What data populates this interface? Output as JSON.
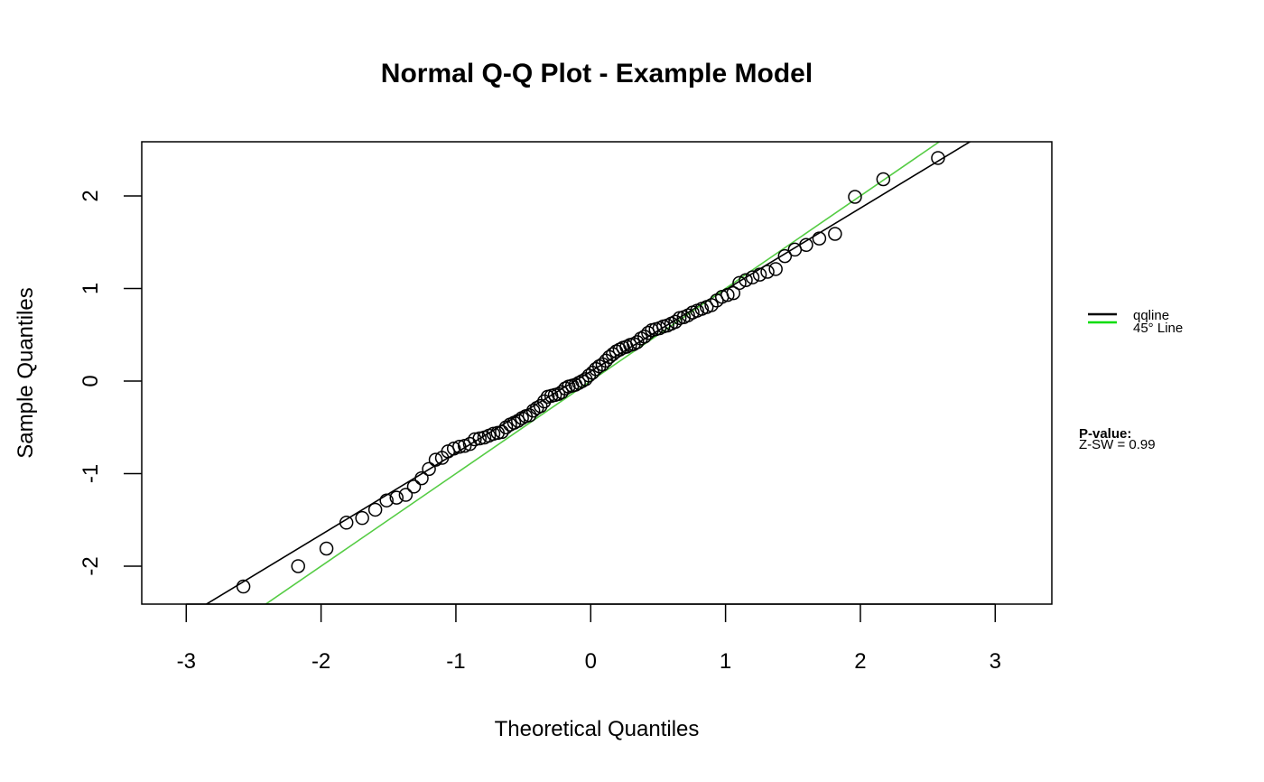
{
  "chart_data": {
    "type": "scatter",
    "title": "Normal Q-Q Plot - Example Model",
    "xlabel": "Theoretical Quantiles",
    "ylabel": "Sample Quantiles",
    "xlim": [
      -3.33,
      3.42
    ],
    "ylim": [
      -2.41,
      2.585
    ],
    "xticks": [
      "-3",
      "-2",
      "-1",
      "0",
      "1",
      "2",
      "3"
    ],
    "yticks": [
      "-2",
      "-1",
      "0",
      "1",
      "2"
    ],
    "grid": false,
    "points": {
      "x": [
        -2.576,
        -2.17,
        -1.96,
        -1.812,
        -1.695,
        -1.598,
        -1.514,
        -1.44,
        -1.372,
        -1.311,
        -1.254,
        -1.2,
        -1.15,
        -1.103,
        -1.058,
        -1.015,
        -0.974,
        -0.935,
        -0.896,
        -0.86,
        -0.824,
        -0.789,
        -0.755,
        -0.722,
        -0.69,
        -0.659,
        -0.628,
        -0.598,
        -0.568,
        -0.539,
        -0.51,
        -0.482,
        -0.454,
        -0.426,
        -0.399,
        -0.372,
        -0.345,
        -0.319,
        -0.292,
        -0.266,
        -0.24,
        -0.215,
        -0.189,
        -0.164,
        -0.138,
        -0.113,
        -0.088,
        -0.063,
        -0.038,
        -0.013,
        0.013,
        0.038,
        0.063,
        0.088,
        0.113,
        0.138,
        0.164,
        0.189,
        0.215,
        0.24,
        0.266,
        0.292,
        0.319,
        0.345,
        0.372,
        0.399,
        0.426,
        0.454,
        0.482,
        0.51,
        0.539,
        0.568,
        0.598,
        0.628,
        0.659,
        0.69,
        0.722,
        0.755,
        0.789,
        0.824,
        0.86,
        0.896,
        0.935,
        0.974,
        1.015,
        1.058,
        1.103,
        1.15,
        1.2,
        1.254,
        1.311,
        1.372,
        1.44,
        1.514,
        1.598,
        1.695,
        1.812,
        1.96,
        2.17,
        2.576
      ],
      "y": [
        -2.22,
        -2.0,
        -1.81,
        -1.53,
        -1.48,
        -1.39,
        -1.29,
        -1.26,
        -1.23,
        -1.14,
        -1.05,
        -0.95,
        -0.85,
        -0.83,
        -0.76,
        -0.73,
        -0.71,
        -0.7,
        -0.68,
        -0.63,
        -0.62,
        -0.61,
        -0.59,
        -0.57,
        -0.56,
        -0.55,
        -0.5,
        -0.47,
        -0.45,
        -0.43,
        -0.4,
        -0.38,
        -0.37,
        -0.32,
        -0.29,
        -0.27,
        -0.22,
        -0.17,
        -0.16,
        -0.15,
        -0.14,
        -0.12,
        -0.08,
        -0.06,
        -0.05,
        -0.04,
        -0.02,
        0.0,
        0.02,
        0.06,
        0.09,
        0.13,
        0.16,
        0.18,
        0.22,
        0.26,
        0.29,
        0.32,
        0.34,
        0.36,
        0.37,
        0.39,
        0.4,
        0.42,
        0.46,
        0.48,
        0.52,
        0.55,
        0.56,
        0.57,
        0.59,
        0.6,
        0.62,
        0.64,
        0.68,
        0.69,
        0.71,
        0.74,
        0.76,
        0.78,
        0.8,
        0.82,
        0.87,
        0.91,
        0.93,
        0.95,
        1.06,
        1.09,
        1.12,
        1.15,
        1.18,
        1.21,
        1.35,
        1.42,
        1.47,
        1.54,
        1.59,
        1.99,
        2.18,
        2.41
      ]
    },
    "lines": [
      {
        "name": "qqline",
        "intercept": 0.104,
        "slope": 0.882,
        "color": "#000000"
      },
      {
        "name": "45° Line",
        "intercept": 0,
        "slope": 1,
        "color": "#55cc44"
      }
    ],
    "legend": {
      "placement": "right",
      "entries": [
        {
          "label": "qqline",
          "color": "#000000"
        },
        {
          "label": "45° Line",
          "color": "#00dd00"
        }
      ]
    },
    "annotation": {
      "heading": "P-value:",
      "text": "Z-SW = 0.99"
    }
  }
}
